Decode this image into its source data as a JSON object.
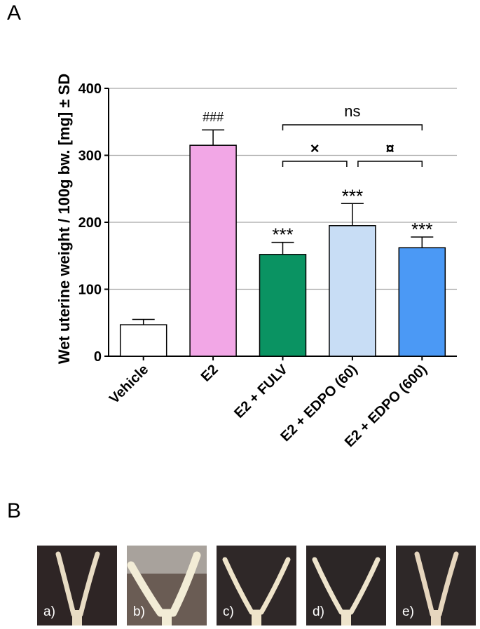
{
  "panels": {
    "a": "A",
    "b": "B"
  },
  "chart_data": {
    "type": "bar",
    "ylabel": "Wet uterine weight / 100g bw. [mg] ± SD",
    "ylim": [
      0,
      400
    ],
    "yticks": [
      0,
      100,
      200,
      300,
      400
    ],
    "grid": true,
    "categories": [
      "Vehicle",
      "E2",
      "E2 + FULV",
      "E2 + EDPO (60)",
      "E2 + EDPO (600)"
    ],
    "values": [
      47,
      315,
      152,
      195,
      162
    ],
    "errors": [
      8,
      23,
      18,
      33,
      16
    ],
    "colors": [
      "#ffffff",
      "#f2a7e6",
      "#0a9362",
      "#c8ddf5",
      "#4b99f5"
    ],
    "bar_annotations": [
      "",
      "###",
      "***",
      "***",
      "***"
    ],
    "comparisons": [
      {
        "from": 2,
        "to": 4,
        "label": "ns"
      },
      {
        "from": 2,
        "to": 3,
        "label": "×"
      },
      {
        "from": 3,
        "to": 4,
        "label": "¤"
      }
    ]
  },
  "photos": [
    {
      "label": "a)",
      "bg": "#2e2525",
      "tissue": "#e8dcc4",
      "shape": "narrow"
    },
    {
      "label": "b)",
      "bg": "#6a5c54",
      "tissue": "#f2ecd6",
      "shape": "wide"
    },
    {
      "label": "c)",
      "bg": "#2f2828",
      "tissue": "#efe4ca",
      "shape": "medium"
    },
    {
      "label": "d)",
      "bg": "#2c2626",
      "tissue": "#eee4cc",
      "shape": "medium"
    },
    {
      "label": "e)",
      "bg": "#2e2828",
      "tissue": "#e6d6be",
      "shape": "narrow"
    }
  ]
}
